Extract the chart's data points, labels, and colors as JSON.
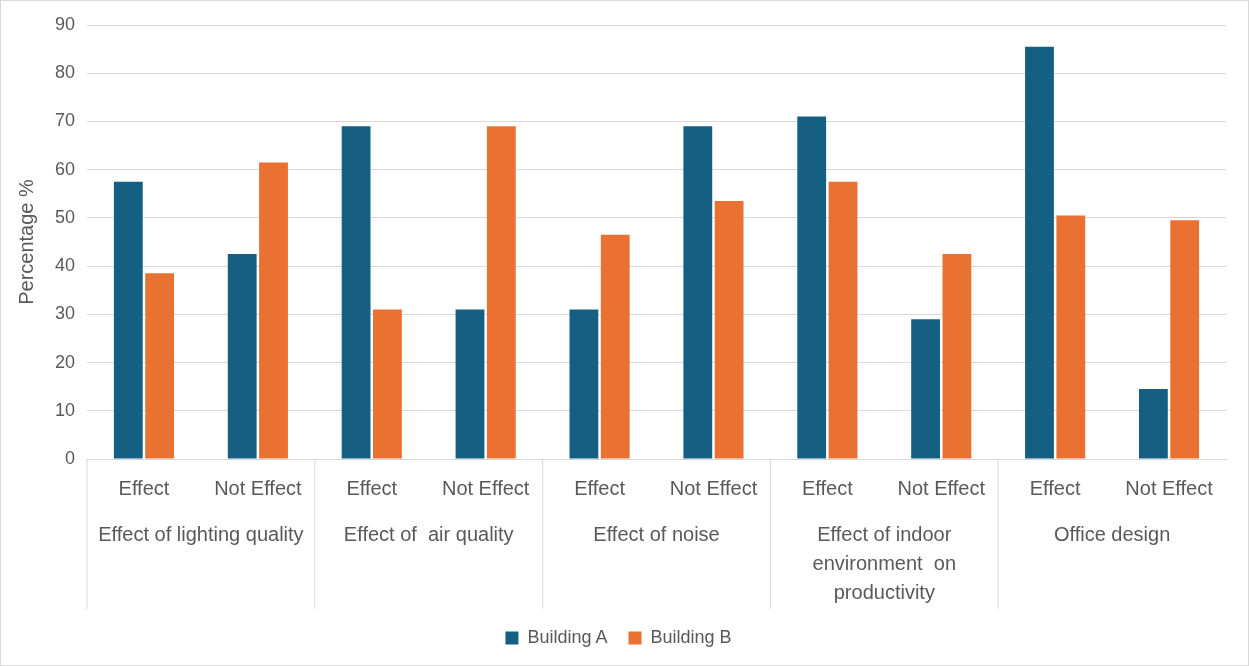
{
  "chart_data": {
    "type": "bar",
    "ylabel": "Percentage %",
    "categories": [
      "Effect",
      "Not Effect",
      "Effect",
      "Not Effect",
      "Effect",
      "Not Effect",
      "Effect",
      "Not Effect",
      "Effect",
      "Not Effect"
    ],
    "annotations": [
      "Effect of lighting quality",
      "Effect of  air quality",
      "Effect of noise",
      "Effect of indoor environment  on productivity",
      "Office design"
    ],
    "series": [
      {
        "name": "Building A",
        "color": "#156082",
        "values": [
          57.5,
          42.5,
          69,
          31,
          31,
          69,
          71,
          29,
          85.5,
          14.5
        ]
      },
      {
        "name": "Building B",
        "color": "#e97132",
        "values": [
          38.5,
          61.5,
          31,
          69,
          46.5,
          53.5,
          57.5,
          42.5,
          50.5,
          49.5
        ]
      }
    ],
    "ylim": [
      0,
      90
    ],
    "yticks": [
      0,
      10,
      20,
      30,
      40,
      50,
      60,
      70,
      80,
      90
    ],
    "grid": "y",
    "legend": "bottom"
  }
}
